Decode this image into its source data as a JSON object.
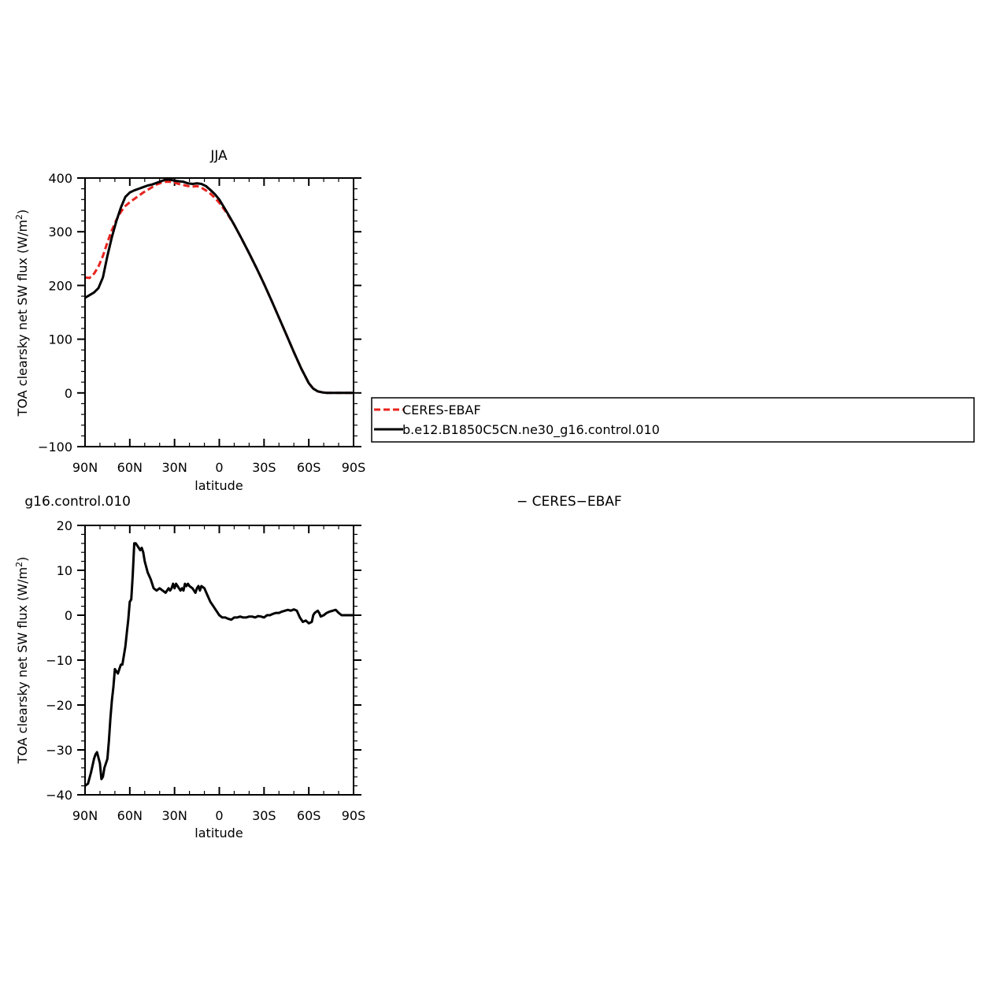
{
  "chart_data": [
    {
      "type": "line",
      "title": "JJA",
      "xlabel": "latitude",
      "ylabel": "TOA clearsky net SW flux (W/m²)",
      "xlim": [
        90,
        -90
      ],
      "ylim": [
        -100,
        400
      ],
      "x_ticks": [
        90,
        60,
        30,
        0,
        -30,
        -60,
        -90
      ],
      "x_tick_labels": [
        "90N",
        "60N",
        "30N",
        "0",
        "30S",
        "60S",
        "90S"
      ],
      "y_ticks": [
        -100,
        0,
        100,
        200,
        300,
        400
      ],
      "y_tick_labels": [
        "−100",
        "0",
        "100",
        "200",
        "300",
        "400"
      ],
      "grid": false,
      "legend": "right",
      "series": [
        {
          "name": "CERES-EBAF",
          "color": "#e8231e",
          "dash": "dashed",
          "x": [
            90,
            87,
            84,
            81,
            78,
            75,
            72,
            69,
            66,
            63,
            60,
            57,
            54,
            51,
            48,
            45,
            42,
            39,
            36,
            33,
            30,
            27,
            24,
            21,
            18,
            15,
            12,
            9,
            6,
            3,
            0,
            -5,
            -10,
            -15,
            -20,
            -25,
            -30,
            -35,
            -40,
            -45,
            -50,
            -55,
            -60,
            -63,
            -66,
            -69,
            -72,
            -75,
            -78,
            -81,
            -84,
            -87,
            -90
          ],
          "values": [
            215,
            214,
            222,
            235,
            255,
            280,
            303,
            322,
            337,
            348,
            355,
            361,
            367,
            373,
            378,
            383,
            388,
            391,
            393,
            393,
            391,
            389,
            387,
            385,
            384,
            385,
            382,
            377,
            371,
            363,
            354,
            335,
            313,
            287,
            260,
            232,
            203,
            172,
            140,
            108,
            76,
            45,
            18,
            8,
            3,
            1,
            0,
            0,
            0,
            0,
            0,
            0,
            0
          ]
        },
        {
          "name": "b.e12.B1850C5CN.ne30_g16.control.010",
          "color": "#000000",
          "dash": "solid",
          "x": [
            90,
            87,
            84,
            81,
            78,
            75,
            72,
            69,
            66,
            63,
            60,
            57,
            54,
            51,
            48,
            45,
            42,
            39,
            36,
            33,
            30,
            27,
            24,
            21,
            18,
            15,
            12,
            9,
            6,
            3,
            0,
            -5,
            -10,
            -15,
            -20,
            -25,
            -30,
            -35,
            -40,
            -45,
            -50,
            -55,
            -60,
            -63,
            -66,
            -69,
            -72,
            -75,
            -78,
            -81,
            -84,
            -87,
            -90
          ],
          "values": [
            177,
            182,
            187,
            195,
            215,
            255,
            290,
            320,
            345,
            365,
            373,
            377,
            380,
            383,
            386,
            388,
            391,
            394,
            397,
            397,
            395,
            394,
            393,
            390,
            389,
            390,
            389,
            385,
            378,
            370,
            360,
            337,
            313,
            287,
            260,
            232,
            203,
            172,
            140,
            108,
            76,
            45,
            18,
            8,
            3,
            1,
            0,
            0,
            0,
            0,
            0,
            0,
            0
          ]
        }
      ]
    },
    {
      "type": "line",
      "title_left": "g16.control.010",
      "title_right": "− CERES−EBAF",
      "xlabel": "latitude",
      "ylabel": "TOA clearsky net SW flux (W/m²)",
      "xlim": [
        90,
        -90
      ],
      "ylim": [
        -40,
        20
      ],
      "x_ticks": [
        90,
        60,
        30,
        0,
        -30,
        -60,
        -90
      ],
      "x_tick_labels": [
        "90N",
        "60N",
        "30N",
        "0",
        "30S",
        "60S",
        "90S"
      ],
      "y_ticks": [
        -40,
        -30,
        -20,
        -10,
        0,
        10,
        20
      ],
      "y_tick_labels": [
        "−40",
        "−30",
        "−20",
        "−10",
        "0",
        "10",
        "20"
      ],
      "grid": false,
      "series": [
        {
          "name": "",
          "color": "#000000",
          "dash": "solid",
          "x": [
            90,
            88,
            86,
            84,
            83,
            82,
            80,
            79,
            78,
            77,
            75,
            74,
            73,
            72,
            71,
            70,
            68,
            67,
            66,
            65,
            63,
            62,
            61,
            60,
            59,
            58,
            57,
            56,
            55,
            54,
            53,
            52,
            51,
            50,
            48,
            46,
            44,
            42,
            40,
            38,
            36,
            34,
            33,
            32,
            31,
            30,
            29,
            28,
            27,
            26,
            25,
            24,
            23,
            22,
            21,
            20,
            18,
            16,
            15,
            14,
            13,
            12,
            10,
            8,
            6,
            4,
            2,
            0,
            -2,
            -4,
            -6,
            -8,
            -10,
            -12,
            -14,
            -16,
            -18,
            -20,
            -22,
            -24,
            -26,
            -28,
            -30,
            -32,
            -34,
            -36,
            -38,
            -40,
            -42,
            -44,
            -46,
            -48,
            -50,
            -52,
            -54,
            -56,
            -58,
            -60,
            -62,
            -63,
            -64,
            -66,
            -67,
            -68,
            -70,
            -72,
            -74,
            -76,
            -78,
            -80,
            -82,
            -84,
            -86,
            -88,
            -90
          ],
          "values": [
            -38,
            -37.5,
            -35,
            -32,
            -31,
            -30.5,
            -33,
            -36.5,
            -36,
            -34,
            -32,
            -28,
            -23,
            -19,
            -16,
            -12,
            -13,
            -12,
            -11,
            -11,
            -7,
            -4,
            -1,
            3,
            3.5,
            9,
            16,
            16,
            15.5,
            15,
            14.5,
            15,
            14,
            12,
            9.5,
            8,
            6,
            5.5,
            6,
            5.5,
            5,
            6,
            5.5,
            6,
            7,
            6,
            7,
            6.5,
            6,
            5.5,
            6,
            5.5,
            7,
            6.5,
            7,
            6.5,
            6,
            5,
            6,
            6.5,
            5.5,
            6.5,
            6,
            4.5,
            3,
            2,
            1,
            0,
            -0.5,
            -0.5,
            -0.8,
            -1,
            -0.5,
            -0.5,
            -0.3,
            -0.5,
            -0.5,
            -0.3,
            -0.3,
            -0.5,
            -0.2,
            -0.3,
            -0.5,
            0,
            0,
            0.3,
            0.5,
            0.5,
            0.8,
            1,
            1.2,
            1,
            1.3,
            1,
            -0.5,
            -1.5,
            -1.2,
            -1.8,
            -1.5,
            0,
            0.5,
            1,
            0.5,
            -0.3,
            0,
            0.5,
            0.8,
            1,
            1.2,
            0.5,
            0,
            0,
            0,
            0,
            0
          ]
        }
      ]
    }
  ]
}
